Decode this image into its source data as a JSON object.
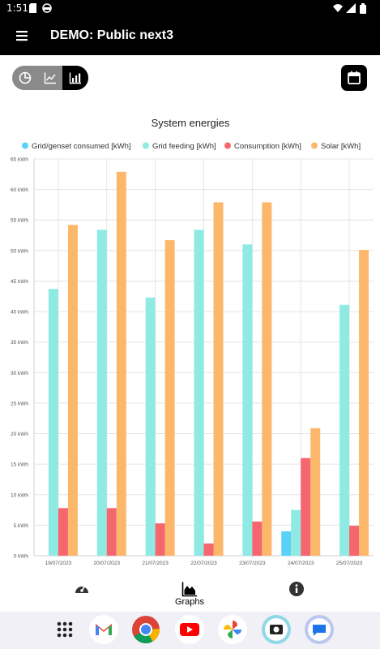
{
  "status_bar": {
    "time": "1:51"
  },
  "app_bar": {
    "title": "DEMO: Public next3"
  },
  "view_toggle": {
    "options": [
      "pie-chart",
      "line-chart",
      "bar-chart"
    ],
    "active": "bar-chart"
  },
  "bottom_nav": {
    "items": [
      {
        "id": "dashboard",
        "label": ""
      },
      {
        "id": "graphs",
        "label": "Graphs"
      },
      {
        "id": "info",
        "label": ""
      }
    ],
    "active": "graphs"
  },
  "dock": {
    "apps": [
      "app-drawer",
      "gmail",
      "chrome",
      "youtube",
      "photos",
      "camera-app",
      "messages"
    ]
  },
  "chart_data": {
    "type": "bar",
    "title": "System energies",
    "categories": [
      "19/07/2023",
      "20/07/2023",
      "21/07/2023",
      "22/07/2023",
      "23/07/2023",
      "24/07/2023",
      "25/07/2023"
    ],
    "series": [
      {
        "name": "Grid/genset consumed [kWh]",
        "color": "#5ad1f8",
        "values": [
          0,
          0,
          0,
          0,
          0,
          4,
          0
        ]
      },
      {
        "name": "Grid feeding [kWh]",
        "color": "#8eeae2",
        "values": [
          43.7,
          53.4,
          42.3,
          53.4,
          51.0,
          7.5,
          41.1
        ]
      },
      {
        "name": "Consumption [kWh]",
        "color": "#f5666e",
        "values": [
          7.8,
          7.8,
          5.3,
          2.0,
          5.6,
          16.0,
          4.9
        ]
      },
      {
        "name": "Solar [kWh]",
        "color": "#fdb76a",
        "values": [
          54.2,
          62.9,
          51.7,
          57.9,
          57.9,
          20.9,
          50.1
        ]
      }
    ],
    "ylim": [
      0,
      65
    ],
    "yticks": [
      "0 kWh",
      "5 kWh",
      "10 kWh",
      "15 kWh",
      "20 kWh",
      "25 kWh",
      "30 kWh",
      "35 kWh",
      "40 kWh",
      "45 kWh",
      "50 kWh",
      "55 kWh",
      "60 kWh",
      "65 kWh"
    ],
    "grid": true,
    "legend_position": "top"
  }
}
